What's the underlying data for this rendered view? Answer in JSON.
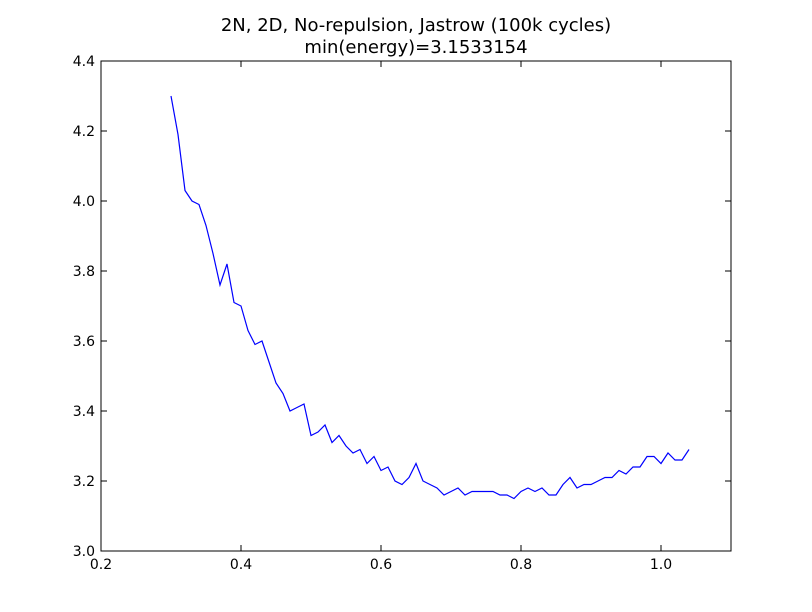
{
  "chart_data": {
    "type": "line",
    "title": "2N, 2D, No-repulsion, Jastrow (100k cycles)",
    "subtitle": "min(energy)=3.1533154",
    "xlabel": "",
    "ylabel": "",
    "xlim": [
      0.2,
      1.1
    ],
    "ylim": [
      3.0,
      4.4
    ],
    "grid": false,
    "xticks": [
      0.2,
      0.4,
      0.6,
      0.8,
      1.0
    ],
    "xtick_labels": [
      "0.2",
      "0.4",
      "0.6",
      "0.8",
      "1.0"
    ],
    "yticks": [
      3.0,
      3.2,
      3.4,
      3.6,
      3.8,
      4.0,
      4.2,
      4.4
    ],
    "ytick_labels": [
      "3.0",
      "3.2",
      "3.4",
      "3.6",
      "3.8",
      "4.0",
      "4.2",
      "4.4"
    ],
    "series_color": "#0000ff",
    "series": [
      {
        "x": [
          0.3,
          0.31,
          0.32,
          0.33,
          0.34,
          0.35,
          0.36,
          0.37,
          0.38,
          0.39,
          0.4,
          0.41,
          0.42,
          0.43,
          0.44,
          0.45,
          0.46,
          0.47,
          0.48,
          0.49,
          0.5,
          0.51,
          0.52,
          0.53,
          0.54,
          0.55,
          0.56,
          0.57,
          0.58,
          0.59,
          0.6,
          0.61,
          0.62,
          0.63,
          0.64,
          0.65,
          0.66,
          0.67,
          0.68,
          0.69,
          0.7,
          0.71,
          0.72,
          0.73,
          0.74,
          0.75,
          0.76,
          0.77,
          0.78,
          0.79,
          0.8,
          0.81,
          0.82,
          0.83,
          0.84,
          0.85,
          0.86,
          0.87,
          0.88,
          0.89,
          0.9,
          0.91,
          0.92,
          0.93,
          0.94,
          0.95,
          0.96,
          0.97,
          0.98,
          0.99,
          1.0,
          1.01,
          1.02,
          1.03,
          1.04
        ],
        "y": [
          4.3,
          4.19,
          4.03,
          4.0,
          3.99,
          3.93,
          3.85,
          3.76,
          3.82,
          3.71,
          3.7,
          3.63,
          3.59,
          3.6,
          3.54,
          3.48,
          3.45,
          3.4,
          3.41,
          3.42,
          3.33,
          3.34,
          3.36,
          3.31,
          3.33,
          3.3,
          3.28,
          3.29,
          3.25,
          3.27,
          3.23,
          3.24,
          3.2,
          3.19,
          3.21,
          3.25,
          3.2,
          3.19,
          3.18,
          3.16,
          3.17,
          3.18,
          3.16,
          3.17,
          3.17,
          3.17,
          3.17,
          3.16,
          3.16,
          3.15,
          3.17,
          3.18,
          3.17,
          3.18,
          3.16,
          3.16,
          3.19,
          3.21,
          3.18,
          3.19,
          3.19,
          3.2,
          3.21,
          3.21,
          3.23,
          3.22,
          3.24,
          3.24,
          3.27,
          3.27,
          3.25,
          3.28,
          3.26,
          3.26,
          3.29
        ]
      }
    ]
  }
}
